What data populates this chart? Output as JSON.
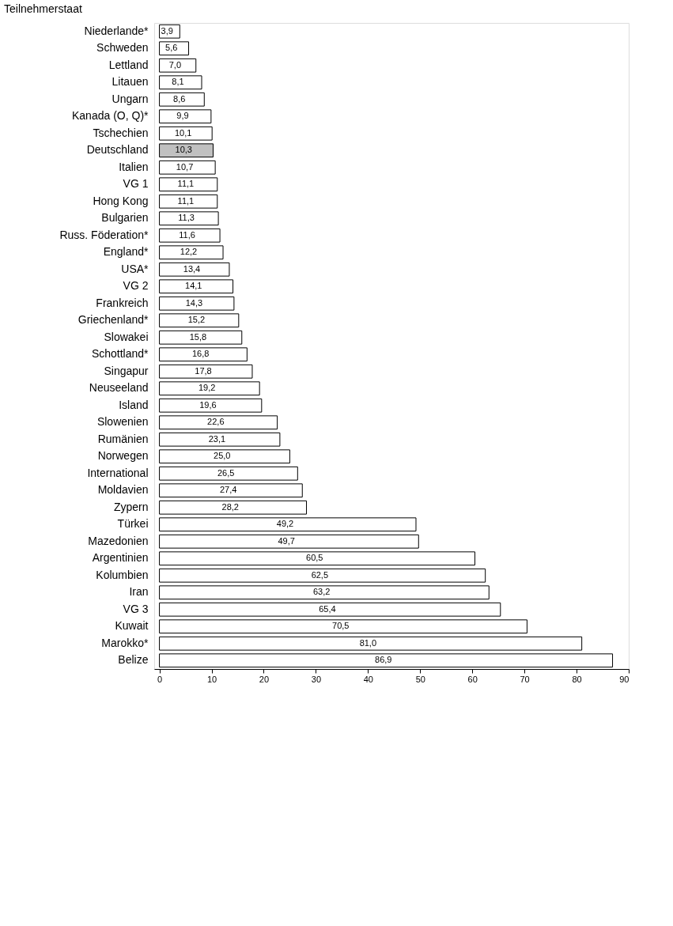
{
  "chart_data": {
    "type": "bar",
    "orientation": "horizontal",
    "ylabel": "Teilnehmerstaat",
    "categories": [
      "Niederlande*",
      "Schweden",
      "Lettland",
      "Litauen",
      "Ungarn",
      "Kanada (O, Q)*",
      "Tschechien",
      "Deutschland",
      "Italien",
      "VG 1",
      "Hong Kong",
      "Bulgarien",
      "Russ. Föderation*",
      "England*",
      "USA*",
      "VG 2",
      "Frankreich",
      "Griechenland*",
      "Slowakei",
      "Schottland*",
      "Singapur",
      "Neuseeland",
      "Island",
      "Slowenien",
      "Rumänien",
      "Norwegen",
      "International",
      "Moldavien",
      "Zypern",
      "Türkei",
      "Mazedonien",
      "Argentinien",
      "Kolumbien",
      "Iran",
      "VG 3",
      "Kuwait",
      "Marokko*",
      "Belize"
    ],
    "values": [
      3.9,
      5.6,
      7.0,
      8.1,
      8.6,
      9.9,
      10.1,
      10.3,
      10.7,
      11.1,
      11.1,
      11.3,
      11.6,
      12.2,
      13.4,
      14.1,
      14.3,
      15.2,
      15.8,
      16.8,
      17.8,
      19.2,
      19.6,
      22.6,
      23.1,
      25.0,
      26.5,
      27.4,
      28.2,
      49.2,
      49.7,
      60.5,
      62.5,
      63.2,
      65.4,
      70.5,
      81.0,
      86.9
    ],
    "value_labels": [
      "3,9",
      "5,6",
      "7,0",
      "8,1",
      "8,6",
      "9,9",
      "10,1",
      "10,3",
      "10,7",
      "11,1",
      "11,1",
      "11,3",
      "11,6",
      "12,2",
      "13,4",
      "14,1",
      "14,3",
      "15,2",
      "15,8",
      "16,8",
      "17,8",
      "19,2",
      "19,6",
      "22,6",
      "23,1",
      "25,0",
      "26,5",
      "27,4",
      "28,2",
      "49,2",
      "49,7",
      "60,5",
      "62,5",
      "63,2",
      "65,4",
      "70,5",
      "81,0",
      "86,9"
    ],
    "colors": [
      "#ffffff",
      "#ffffff",
      "#ffffff",
      "#ffffff",
      "#ffffff",
      "#ffffff",
      "#ffffff",
      "#c0c0c0",
      "#ffffff",
      "#ffffff",
      "#ffffff",
      "#ffffff",
      "#ffffff",
      "#ffffff",
      "#ffffff",
      "#ffffff",
      "#ffffff",
      "#ffffff",
      "#ffffff",
      "#ffffff",
      "#ffffff",
      "#ffffff",
      "#ffffff",
      "#ffffff",
      "#ffffff",
      "#ffffff",
      "#ffffff",
      "#ffffff",
      "#ffffff",
      "#ffffff",
      "#ffffff",
      "#ffffff",
      "#ffffff",
      "#ffffff",
      "#ffffff",
      "#ffffff",
      "#ffffff",
      "#ffffff"
    ],
    "xlim": [
      -1,
      90
    ],
    "xticks": [
      0,
      10,
      20,
      30,
      40,
      50,
      60,
      70,
      80,
      90
    ],
    "grid": false
  }
}
